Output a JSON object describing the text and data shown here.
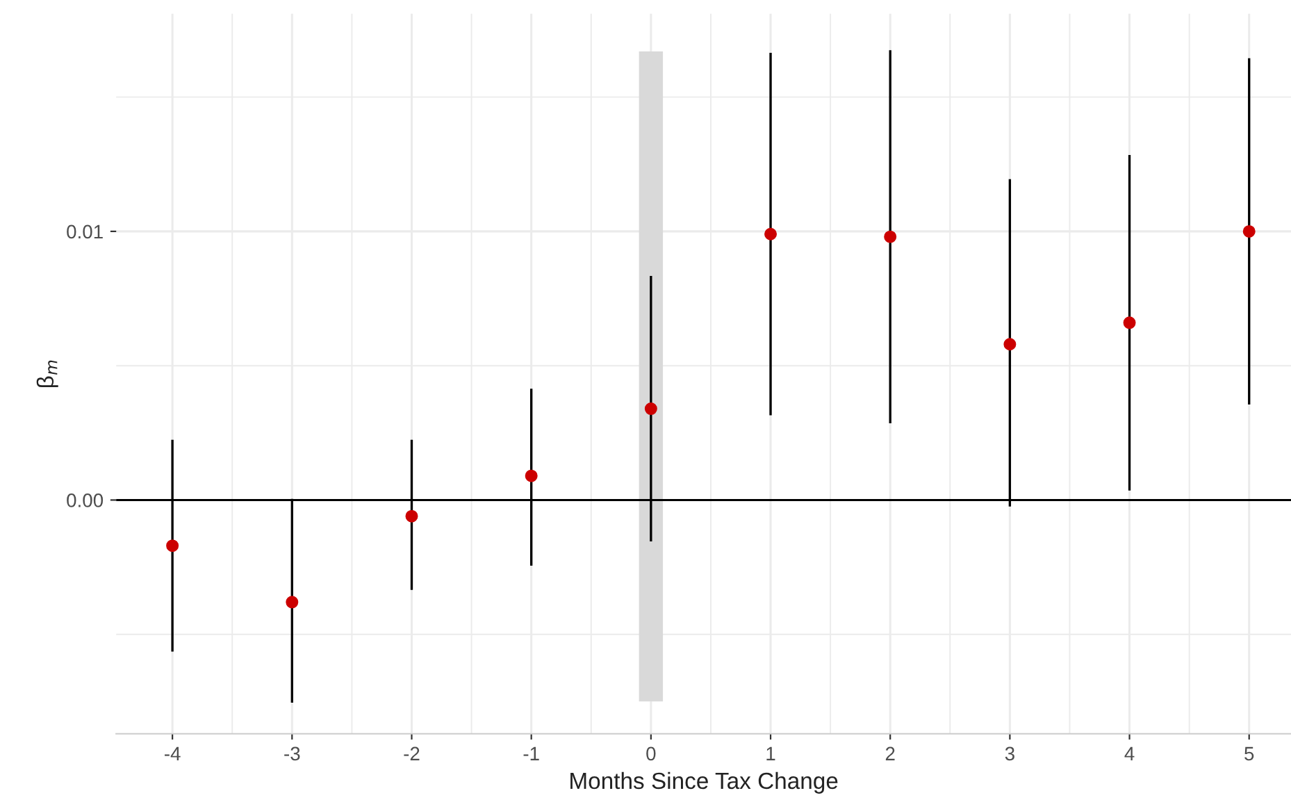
{
  "chart_data": {
    "type": "scatter",
    "xlabel": "Months Since Tax Change",
    "ylabel": "β$_{m}$",
    "x": [
      -4,
      -3,
      -2,
      -1,
      0,
      1,
      2,
      3,
      4,
      5
    ],
    "series": [
      {
        "color": "#cc0000",
        "values": [
          -0.0017,
          -0.0038,
          -0.0006,
          0.0009,
          0.0034,
          0.0099,
          0.0098,
          0.0058,
          0.0066,
          0.01
        ],
        "errors": [
          [
            -0.0056,
            0.0022
          ],
          [
            -0.0075,
            0.0
          ],
          [
            -0.0033,
            0.0022
          ],
          [
            -0.0024,
            0.0041
          ],
          [
            -0.0015,
            0.0083
          ],
          [
            0.0032,
            0.0166
          ],
          [
            0.0029,
            0.0167
          ],
          [
            -0.0002,
            0.0119
          ],
          [
            0.0004,
            0.0128
          ],
          [
            0.0036,
            0.0164
          ]
        ]
      }
    ],
    "xlim": [
      -4.47,
      5.35
    ],
    "ylim": [
      -0.0087,
      0.0181
    ],
    "xticks": [
      -4,
      -3,
      -2,
      -1,
      0,
      1,
      2,
      3,
      4,
      5
    ],
    "yticks": [
      {
        "value": 0,
        "label": "0.00"
      },
      {
        "value": 0.01,
        "label": "0.01"
      }
    ],
    "ref_lines": [
      {
        "axis": "y",
        "value": 0,
        "color": "#000000"
      }
    ],
    "bands": [
      {
        "axis": "x",
        "from": -0.1,
        "to": 0.1,
        "color": "#d9d9d9"
      }
    ],
    "grid": true,
    "marker": "circle"
  }
}
